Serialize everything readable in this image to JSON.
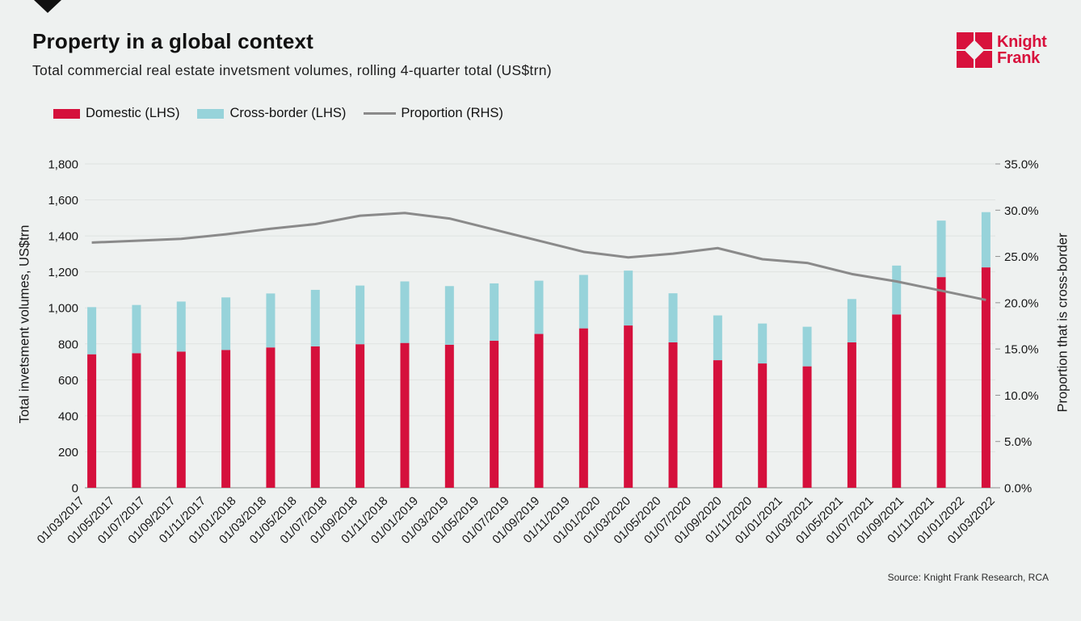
{
  "header": {
    "title": "Property in a global context",
    "subtitle": "Total commercial real estate invetsment volumes, rolling 4-quarter total (US$trn)",
    "logo": {
      "line1": "Knight",
      "line2": "Frank",
      "color": "#d8113c"
    }
  },
  "legend": {
    "items": [
      {
        "label": "Domestic (LHS)"
      },
      {
        "label": "Cross-border (LHS)"
      },
      {
        "label": "Proportion (RHS)"
      }
    ]
  },
  "source": "Source: Knight Frank Research, RCA",
  "chart_data": {
    "type": "bar+line",
    "title": "Property in a global context",
    "subtitle": "Total commercial real estate invetsment volumes, rolling 4-quarter total (US$trn)",
    "stacked": true,
    "grid": true,
    "legend_position": "top-left",
    "x_axis_labels": [
      "01/03/2017",
      "01/05/2017",
      "01/07/2017",
      "01/09/2017",
      "01/11/2017",
      "01/01/2018",
      "01/03/2018",
      "01/05/2018",
      "01/07/2018",
      "01/09/2018",
      "01/11/2018",
      "01/01/2019",
      "01/03/2019",
      "01/05/2019",
      "01/07/2019",
      "01/09/2019",
      "01/11/2019",
      "01/01/2020",
      "01/03/2020",
      "01/05/2020",
      "01/07/2020",
      "01/09/2020",
      "01/11/2020",
      "01/01/2021",
      "01/03/2021",
      "01/05/2021",
      "01/07/2021",
      "01/09/2021",
      "01/11/2021",
      "01/01/2022",
      "01/03/2022"
    ],
    "bar_series": [
      {
        "name": "Domestic (LHS)",
        "color": "#d5103c",
        "values": [
          742,
          748,
          757,
          766,
          780,
          786,
          798,
          805,
          795,
          817,
          855,
          886,
          902,
          808,
          709,
          691,
          675,
          808,
          963,
          1171,
          1225
        ]
      },
      {
        "name": "Cross-border (LHS)",
        "color": "#97d3da",
        "values": [
          262,
          268,
          278,
          292,
          300,
          314,
          326,
          342,
          326,
          319,
          296,
          297,
          305,
          273,
          249,
          222,
          220,
          241,
          272,
          314,
          307
        ]
      }
    ],
    "line_series": {
      "name": "Proportion (RHS)",
      "color": "#8a8a8a",
      "unit": "%",
      "values": [
        26.5,
        26.7,
        26.9,
        27.4,
        28.0,
        28.5,
        29.4,
        29.7,
        29.1,
        27.9,
        26.7,
        25.5,
        24.9,
        25.3,
        25.9,
        24.7,
        24.3,
        23.1,
        22.3,
        21.3,
        20.3
      ]
    },
    "left_axis": {
      "title": "Total invetsment volumes, US$trn",
      "min": 0,
      "max": 1800,
      "step": 200,
      "tick_labels": [
        "0",
        "200",
        "400",
        "600",
        "800",
        "1,000",
        "1,200",
        "1,400",
        "1,600",
        "1,800"
      ]
    },
    "right_axis": {
      "title": "Proportion that is cross-border",
      "min": 0,
      "max": 35,
      "step": 5,
      "tick_labels": [
        "0.0%",
        "5.0%",
        "10.0%",
        "15.0%",
        "20.0%",
        "25.0%",
        "30.0%",
        "35.0%"
      ]
    }
  }
}
